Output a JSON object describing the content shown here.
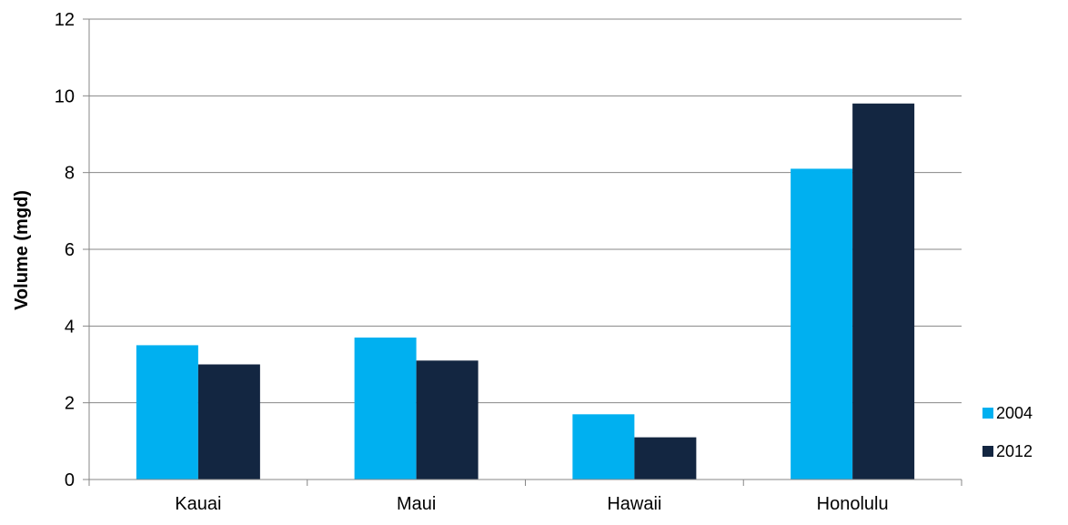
{
  "chart_data": {
    "type": "bar",
    "categories": [
      "Kauai",
      "Maui",
      "Hawaii",
      "Honolulu"
    ],
    "series": [
      {
        "name": "2004",
        "values": [
          3.5,
          3.7,
          1.7,
          8.1
        ],
        "color": "#00b0f0"
      },
      {
        "name": "2012",
        "values": [
          3.0,
          3.1,
          1.1,
          9.8
        ],
        "color": "#132641"
      }
    ],
    "yticks": [
      "0",
      "2",
      "4",
      "6",
      "8",
      "10",
      "12"
    ],
    "ylabel": "Volume (mgd)",
    "xlabel": "",
    "title": "",
    "ylim": [
      0,
      12
    ],
    "grid": true,
    "legend_position": "right"
  }
}
